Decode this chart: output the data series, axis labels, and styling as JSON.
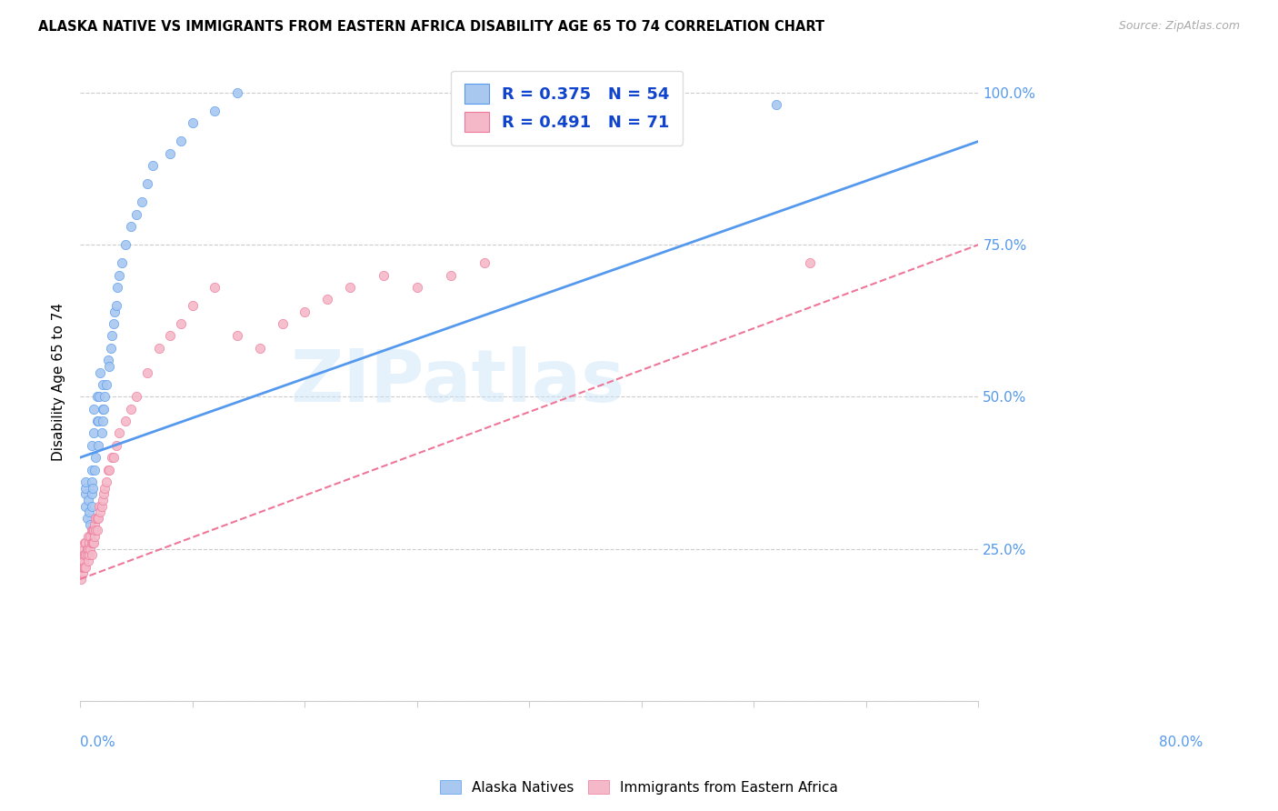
{
  "title": "ALASKA NATIVE VS IMMIGRANTS FROM EASTERN AFRICA DISABILITY AGE 65 TO 74 CORRELATION CHART",
  "source": "Source: ZipAtlas.com",
  "ylabel": "Disability Age 65 to 74",
  "ytick_labels": [
    "",
    "25.0%",
    "50.0%",
    "75.0%",
    "100.0%"
  ],
  "ytick_positions": [
    0.0,
    0.25,
    0.5,
    0.75,
    1.0
  ],
  "xmin": 0.0,
  "xmax": 0.8,
  "ymin": 0.0,
  "ymax": 1.05,
  "legend_r1": "R = 0.375",
  "legend_n1": "N = 54",
  "legend_r2": "R = 0.491",
  "legend_n2": "N = 71",
  "color_alaska": "#a8c8f0",
  "color_eastern_africa": "#f4b8c8",
  "trendline1_color": "#5599ee",
  "trendline2_color": "#ee7799",
  "watermark": "ZIPatlas",
  "trendline1_x0": 0.0,
  "trendline1_y0": 0.4,
  "trendline1_x1": 0.8,
  "trendline1_y1": 0.92,
  "trendline2_x0": 0.0,
  "trendline2_y0": 0.2,
  "trendline2_x1": 0.8,
  "trendline2_y1": 0.75,
  "alaska_x": [
    0.005,
    0.005,
    0.005,
    0.005,
    0.006,
    0.007,
    0.008,
    0.009,
    0.01,
    0.01,
    0.01,
    0.01,
    0.01,
    0.011,
    0.012,
    0.012,
    0.013,
    0.014,
    0.015,
    0.015,
    0.016,
    0.016,
    0.017,
    0.018,
    0.019,
    0.02,
    0.02,
    0.02,
    0.021,
    0.022,
    0.023,
    0.025,
    0.026,
    0.027,
    0.028,
    0.03,
    0.031,
    0.032,
    0.033,
    0.035,
    0.037,
    0.04,
    0.045,
    0.05,
    0.055,
    0.06,
    0.065,
    0.08,
    0.09,
    0.1,
    0.12,
    0.14,
    0.5,
    0.62
  ],
  "alaska_y": [
    0.32,
    0.34,
    0.35,
    0.36,
    0.3,
    0.33,
    0.31,
    0.29,
    0.32,
    0.34,
    0.36,
    0.38,
    0.42,
    0.35,
    0.44,
    0.48,
    0.38,
    0.4,
    0.46,
    0.5,
    0.42,
    0.46,
    0.5,
    0.54,
    0.44,
    0.46,
    0.48,
    0.52,
    0.48,
    0.5,
    0.52,
    0.56,
    0.55,
    0.58,
    0.6,
    0.62,
    0.64,
    0.65,
    0.68,
    0.7,
    0.72,
    0.75,
    0.78,
    0.8,
    0.82,
    0.85,
    0.88,
    0.9,
    0.92,
    0.95,
    0.97,
    1.0,
    0.96,
    0.98
  ],
  "eastern_x": [
    0.0,
    0.001,
    0.001,
    0.002,
    0.002,
    0.002,
    0.003,
    0.003,
    0.003,
    0.004,
    0.004,
    0.004,
    0.005,
    0.005,
    0.005,
    0.006,
    0.006,
    0.007,
    0.007,
    0.007,
    0.008,
    0.008,
    0.009,
    0.009,
    0.01,
    0.01,
    0.01,
    0.011,
    0.011,
    0.012,
    0.012,
    0.013,
    0.013,
    0.014,
    0.014,
    0.015,
    0.015,
    0.016,
    0.017,
    0.018,
    0.019,
    0.02,
    0.021,
    0.022,
    0.023,
    0.025,
    0.026,
    0.028,
    0.03,
    0.032,
    0.035,
    0.04,
    0.045,
    0.05,
    0.06,
    0.07,
    0.08,
    0.09,
    0.1,
    0.12,
    0.14,
    0.16,
    0.18,
    0.2,
    0.22,
    0.24,
    0.27,
    0.3,
    0.33,
    0.36,
    0.65
  ],
  "eastern_y": [
    0.22,
    0.2,
    0.23,
    0.21,
    0.22,
    0.24,
    0.22,
    0.23,
    0.25,
    0.22,
    0.24,
    0.26,
    0.22,
    0.24,
    0.26,
    0.24,
    0.25,
    0.23,
    0.25,
    0.27,
    0.24,
    0.26,
    0.25,
    0.27,
    0.24,
    0.26,
    0.28,
    0.26,
    0.28,
    0.26,
    0.28,
    0.27,
    0.29,
    0.28,
    0.3,
    0.28,
    0.3,
    0.3,
    0.32,
    0.31,
    0.32,
    0.33,
    0.34,
    0.35,
    0.36,
    0.38,
    0.38,
    0.4,
    0.4,
    0.42,
    0.44,
    0.46,
    0.48,
    0.5,
    0.54,
    0.58,
    0.6,
    0.62,
    0.65,
    0.68,
    0.6,
    0.58,
    0.62,
    0.64,
    0.66,
    0.68,
    0.7,
    0.68,
    0.7,
    0.72,
    0.72
  ]
}
